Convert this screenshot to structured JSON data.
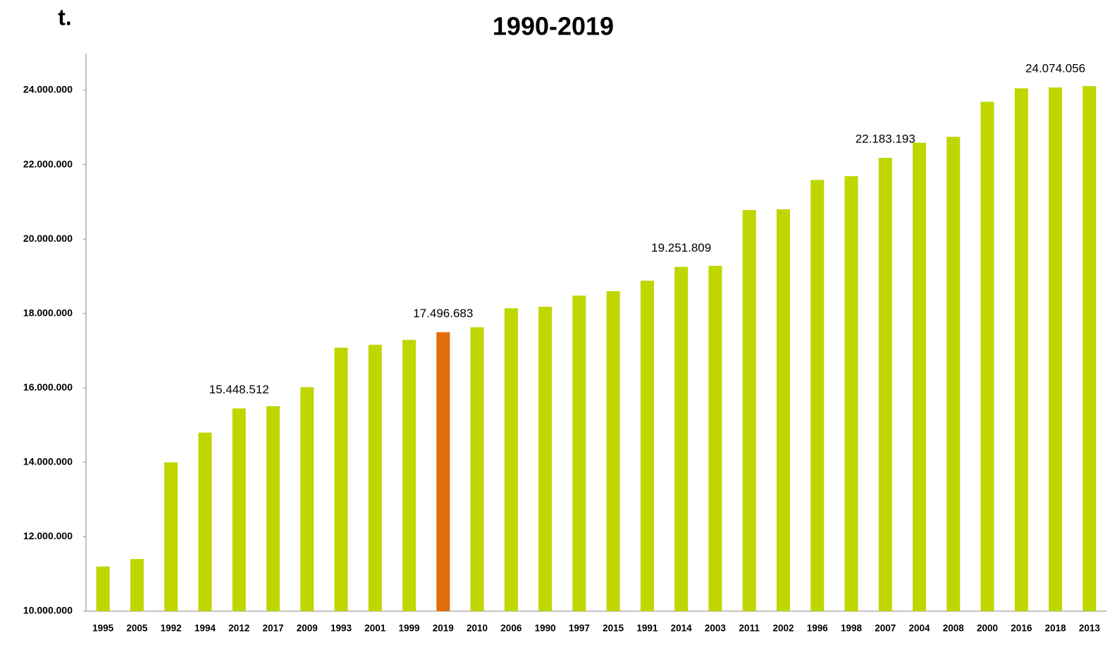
{
  "chart_data": {
    "type": "bar",
    "title": "1990-2019",
    "annotation": "t.",
    "categories": [
      "1995",
      "2005",
      "1992",
      "1994",
      "2012",
      "2017",
      "2009",
      "1993",
      "2001",
      "1999",
      "2019",
      "2010",
      "2006",
      "1990",
      "1997",
      "2015",
      "1991",
      "2014",
      "2003",
      "2011",
      "2002",
      "1996",
      "1998",
      "2007",
      "2004",
      "2008",
      "2000",
      "2016",
      "2018",
      "2013"
    ],
    "values": [
      11200000,
      11400000,
      14000000,
      14800000,
      15448512,
      15510000,
      16020000,
      17080000,
      17160000,
      17290000,
      17496683,
      17630000,
      18140000,
      18180000,
      18480000,
      18600000,
      18880000,
      19251809,
      19280000,
      20780000,
      20800000,
      21590000,
      21690000,
      22183193,
      22590000,
      22750000,
      23690000,
      24050000,
      24074056,
      24110000
    ],
    "value_labels": [
      null,
      null,
      null,
      null,
      "15.448.512",
      null,
      null,
      null,
      null,
      null,
      "17.496.683",
      null,
      null,
      null,
      null,
      null,
      null,
      "19.251.809",
      null,
      null,
      null,
      null,
      null,
      "22.183.193",
      null,
      null,
      null,
      null,
      "24.074.056",
      null
    ],
    "colors": [
      "#bfd600",
      "#bfd600",
      "#bfd600",
      "#bfd600",
      "#bfd600",
      "#bfd600",
      "#bfd600",
      "#bfd600",
      "#bfd600",
      "#bfd600",
      "#e36c0a",
      "#bfd600",
      "#bfd600",
      "#bfd600",
      "#bfd600",
      "#bfd600",
      "#bfd600",
      "#bfd600",
      "#bfd600",
      "#bfd600",
      "#bfd600",
      "#bfd600",
      "#bfd600",
      "#bfd600",
      "#bfd600",
      "#bfd600",
      "#bfd600",
      "#bfd600",
      "#bfd600",
      "#bfd600"
    ],
    "ylim": [
      10000000,
      24000000
    ],
    "yticks": [
      {
        "value": 10000000,
        "label": "10.000.000"
      },
      {
        "value": 12000000,
        "label": "12.000.000"
      },
      {
        "value": 14000000,
        "label": "14.000.000"
      },
      {
        "value": 16000000,
        "label": "16.000.000"
      },
      {
        "value": 18000000,
        "label": "18.000.000"
      },
      {
        "value": 20000000,
        "label": "20.000.000"
      },
      {
        "value": 22000000,
        "label": "22.000.000"
      },
      {
        "value": 24000000,
        "label": "24.000.000"
      }
    ],
    "grid": false
  }
}
